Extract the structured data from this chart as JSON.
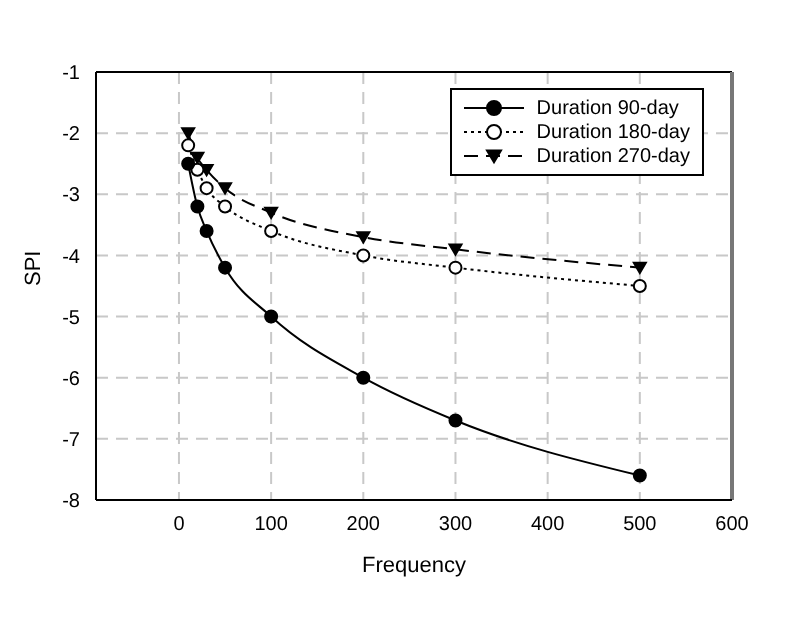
{
  "chart_data": {
    "type": "line",
    "xlabel": "Frequency",
    "ylabel": "SPI",
    "x": [
      10,
      20,
      30,
      50,
      100,
      200,
      300,
      500
    ],
    "series": [
      {
        "name": "Duration 90-day",
        "color": "#000000",
        "values": [
          -2.5,
          -3.2,
          -3.6,
          -4.2,
          -5,
          -6,
          -6.7,
          -7.6
        ],
        "marker": "circle",
        "line_style": "solid"
      },
      {
        "name": "Duration 180-day",
        "color": "#000000",
        "values": [
          -2.2,
          -2.6,
          -2.9,
          -3.2,
          -3.6,
          -4.0,
          -4.2,
          -4.5
        ],
        "marker": "circle-open",
        "line_style": "dotted"
      },
      {
        "name": "Duration 270-day",
        "color": "#000000",
        "values": [
          -2.0,
          -2.4,
          -2.6,
          -2.9,
          -3.3,
          -3.7,
          -3.9,
          -4.2
        ],
        "marker": "triangle",
        "line_style": "dashed"
      }
    ],
    "xlim": [
      -90,
      600
    ],
    "xticks": [
      0,
      100,
      200,
      300,
      400,
      500,
      600
    ],
    "ylim": [
      -8,
      -1
    ],
    "yticks": [
      -8,
      -7,
      -6,
      -5,
      -4,
      -3,
      -2,
      -1
    ],
    "grid": true,
    "legend": "top right"
  }
}
